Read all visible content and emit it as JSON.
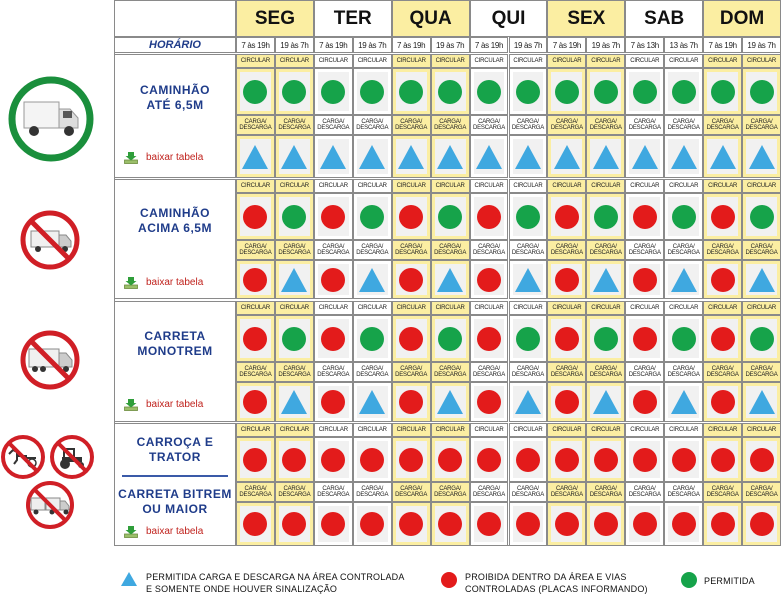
{
  "header": {
    "horario_label": "HORÁRIO",
    "days": [
      {
        "label": "SEG",
        "hours": [
          "7 às 19h",
          "19 às 7h"
        ]
      },
      {
        "label": "TER",
        "hours": [
          "7 às 19h",
          "19 às 7h"
        ]
      },
      {
        "label": "QUA",
        "hours": [
          "7 às 19h",
          "19 às 7h"
        ]
      },
      {
        "label": "QUI",
        "hours": [
          "7 às 19h",
          "19 às 7h"
        ]
      },
      {
        "label": "SEX",
        "hours": [
          "7 às 19h",
          "19 às 7h"
        ]
      },
      {
        "label": "SAB",
        "hours": [
          "7 às 13h",
          "13 às 7h"
        ]
      },
      {
        "label": "DOM",
        "hours": [
          "7 às 19h",
          "19 às 7h"
        ]
      }
    ]
  },
  "labels": {
    "circular": "CIRCULAR",
    "carga_descarga": "CARGA/ DESCARGA"
  },
  "vehicles": [
    {
      "name": "CAMINHÃO\nATÉ 6,5M",
      "download": "baixar tabela",
      "circular": [
        "green",
        "green",
        "green",
        "green",
        "green",
        "green",
        "green",
        "green",
        "green",
        "green",
        "green",
        "green",
        "green",
        "green"
      ],
      "carga": [
        "triangle",
        "triangle",
        "triangle",
        "triangle",
        "triangle",
        "triangle",
        "triangle",
        "triangle",
        "triangle",
        "triangle",
        "triangle",
        "triangle",
        "triangle",
        "triangle"
      ]
    },
    {
      "name": "CAMINHÃO\nACIMA 6,5M",
      "download": "baixar tabela",
      "circular": [
        "red",
        "green",
        "red",
        "green",
        "red",
        "green",
        "red",
        "green",
        "red",
        "green",
        "red",
        "green",
        "red",
        "green"
      ],
      "carga": [
        "red",
        "triangle",
        "red",
        "triangle",
        "red",
        "triangle",
        "red",
        "triangle",
        "red",
        "triangle",
        "red",
        "triangle",
        "red",
        "triangle"
      ]
    },
    {
      "name": "CARRETA\nMONOTREM",
      "download": "baixar tabela",
      "circular": [
        "red",
        "green",
        "red",
        "green",
        "red",
        "green",
        "red",
        "green",
        "red",
        "green",
        "red",
        "green",
        "red",
        "green"
      ],
      "carga": [
        "red",
        "triangle",
        "red",
        "triangle",
        "red",
        "triangle",
        "red",
        "triangle",
        "red",
        "triangle",
        "red",
        "triangle",
        "red",
        "triangle"
      ]
    },
    {
      "name": "CARROÇA E\nTRATOR",
      "circular": [
        "red",
        "red",
        "red",
        "red",
        "red",
        "red",
        "red",
        "red",
        "red",
        "red",
        "red",
        "red",
        "red",
        "red"
      ]
    },
    {
      "name": "CARRETA BITREM\nOU MAIOR",
      "download": "baixar tabela",
      "carga": [
        "red",
        "red",
        "red",
        "red",
        "red",
        "red",
        "red",
        "red",
        "red",
        "red",
        "red",
        "red",
        "red",
        "red"
      ]
    }
  ],
  "legend": {
    "triangle": "PERMITIDA CARGA E DESCARGA NA ÁREA CONTROLADA\nE SOMENTE ONDE HOUVER SINALIZAÇÃO",
    "red": "PROIBIDA DENTRO DA ÁREA E VIAS\nCONTROLADAS (PLACAS INFORMANDO)",
    "green": "PERMITIDA"
  },
  "colors": {
    "green": "#16a34a",
    "red": "#e31b1b",
    "triangle": "#3fa8e0",
    "header_bg": "#fbeea2",
    "border": "#8a8a8a",
    "blue_text": "#1f3c8a",
    "sign_red": "#d01f26",
    "sign_green": "#1a8f3c"
  },
  "icons": [
    "truck-allowed-sign-icon",
    "truck-prohibited-sign-icon",
    "carreta-prohibited-sign-icon",
    "carroca-prohibited-sign-icon",
    "trator-prohibited-sign-icon",
    "bitrem-prohibited-sign-icon",
    "download-icon"
  ]
}
